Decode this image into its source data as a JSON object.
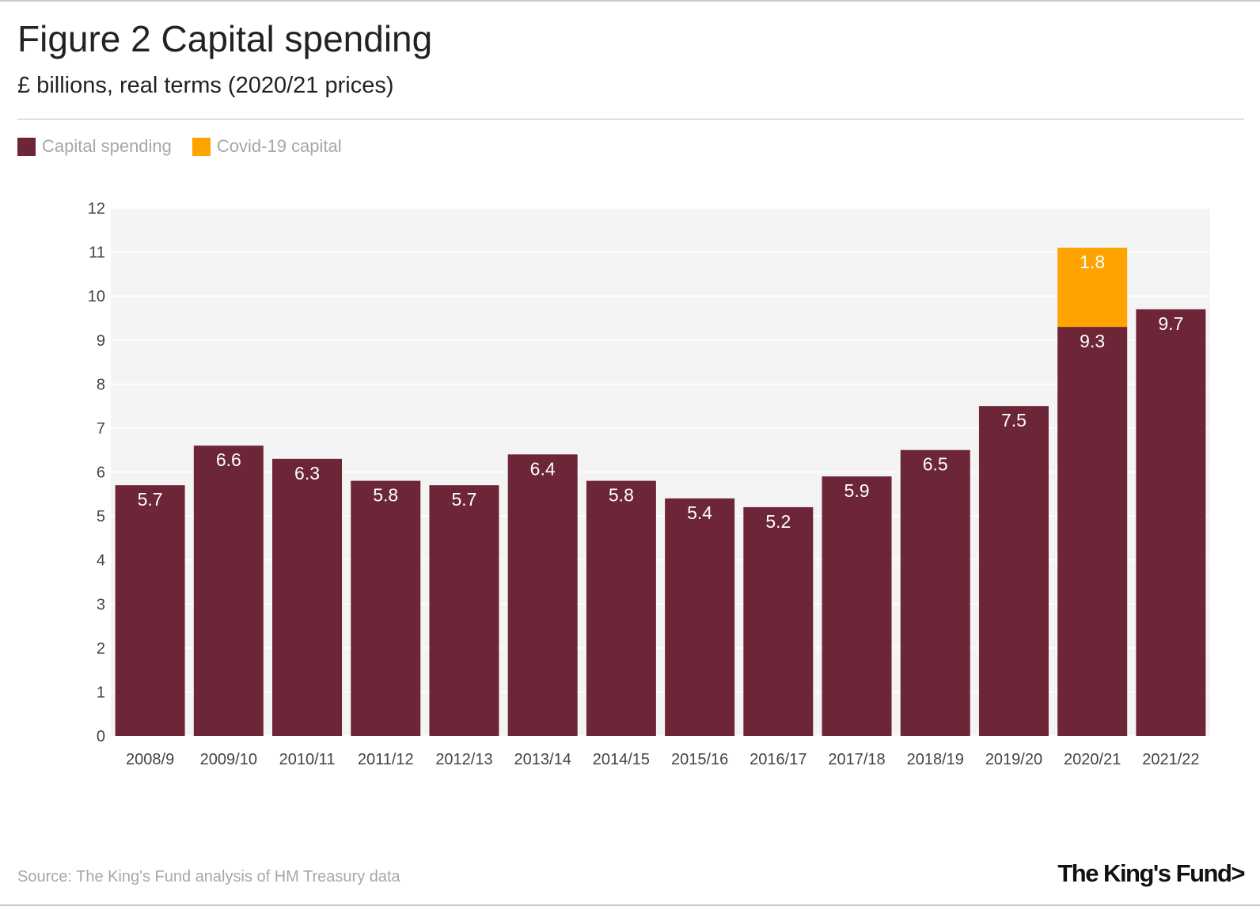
{
  "title": "Figure 2 Capital spending",
  "subtitle": "£ billions, real terms (2020/21 prices)",
  "legend": [
    {
      "label": "Capital spending",
      "color": "#6d2638"
    },
    {
      "label": "Covid-19 capital",
      "color": "#ffa300"
    }
  ],
  "source": "Source: The King's Fund analysis of HM Treasury data",
  "logo": "The King's Fund>",
  "chart_data": {
    "type": "bar",
    "stacked": true,
    "categories": [
      "2008/9",
      "2009/10",
      "2010/11",
      "2011/12",
      "2012/13",
      "2013/14",
      "2014/15",
      "2015/16",
      "2016/17",
      "2017/18",
      "2018/19",
      "2019/20",
      "2020/21",
      "2021/22"
    ],
    "series": [
      {
        "name": "Capital spending",
        "color": "#6d2638",
        "values": [
          5.7,
          6.6,
          6.3,
          5.8,
          5.7,
          6.4,
          5.8,
          5.4,
          5.2,
          5.9,
          6.5,
          7.5,
          9.3,
          9.7
        ]
      },
      {
        "name": "Covid-19 capital",
        "color": "#ffa300",
        "values": [
          0,
          0,
          0,
          0,
          0,
          0,
          0,
          0,
          0,
          0,
          0,
          0,
          1.8,
          0
        ]
      }
    ],
    "ylim": [
      0,
      12
    ],
    "yticks": [
      0,
      1,
      2,
      3,
      4,
      5,
      6,
      7,
      8,
      9,
      10,
      11,
      12
    ],
    "grid": true,
    "xlabel": "",
    "ylabel": ""
  }
}
